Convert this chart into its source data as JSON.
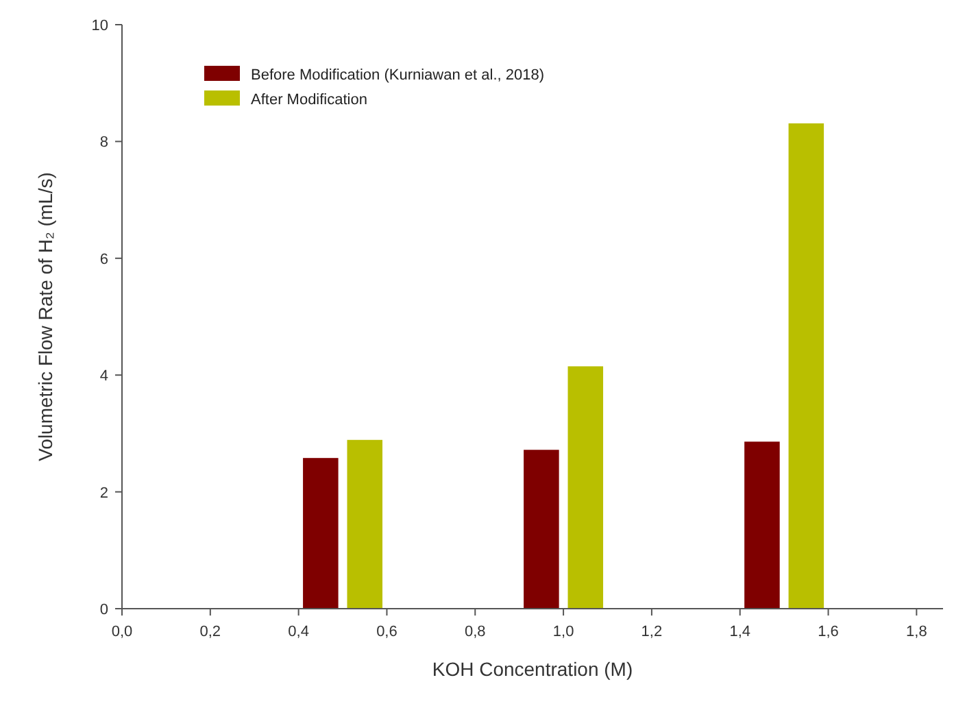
{
  "chart_data": {
    "type": "bar",
    "xlabel": "KOH Concentration (M)",
    "ylabel": "Volumetric Flow Rate of H₂ (mL/s)",
    "series": [
      {
        "name": "Before Modification (Kurniawan et al., 2018)",
        "color": "#7f0000",
        "x": [
          0.45,
          0.95,
          1.45
        ],
        "values": [
          2.58,
          2.72,
          2.86
        ]
      },
      {
        "name": "After Modification",
        "color": "#b9bf00",
        "x": [
          0.55,
          1.05,
          1.55
        ],
        "values": [
          2.89,
          4.15,
          8.31
        ]
      }
    ],
    "xlim": [
      0,
      1.86
    ],
    "xticks": [
      {
        "value": 0,
        "label": "0,0"
      },
      {
        "value": 0.2,
        "label": "0,2"
      },
      {
        "value": 0.4,
        "label": "0,4"
      },
      {
        "value": 0.6,
        "label": "0,6"
      },
      {
        "value": 0.8,
        "label": "0,8"
      },
      {
        "value": 1.0,
        "label": "1,0"
      },
      {
        "value": 1.2,
        "label": "1,2"
      },
      {
        "value": 1.4,
        "label": "1,4"
      },
      {
        "value": 1.6,
        "label": "1,6"
      },
      {
        "value": 1.8,
        "label": "1,8"
      }
    ],
    "ylim": [
      0,
      10
    ],
    "yticks": [
      0,
      2,
      4,
      6,
      8,
      10
    ],
    "grid": false,
    "legend": "top left"
  }
}
